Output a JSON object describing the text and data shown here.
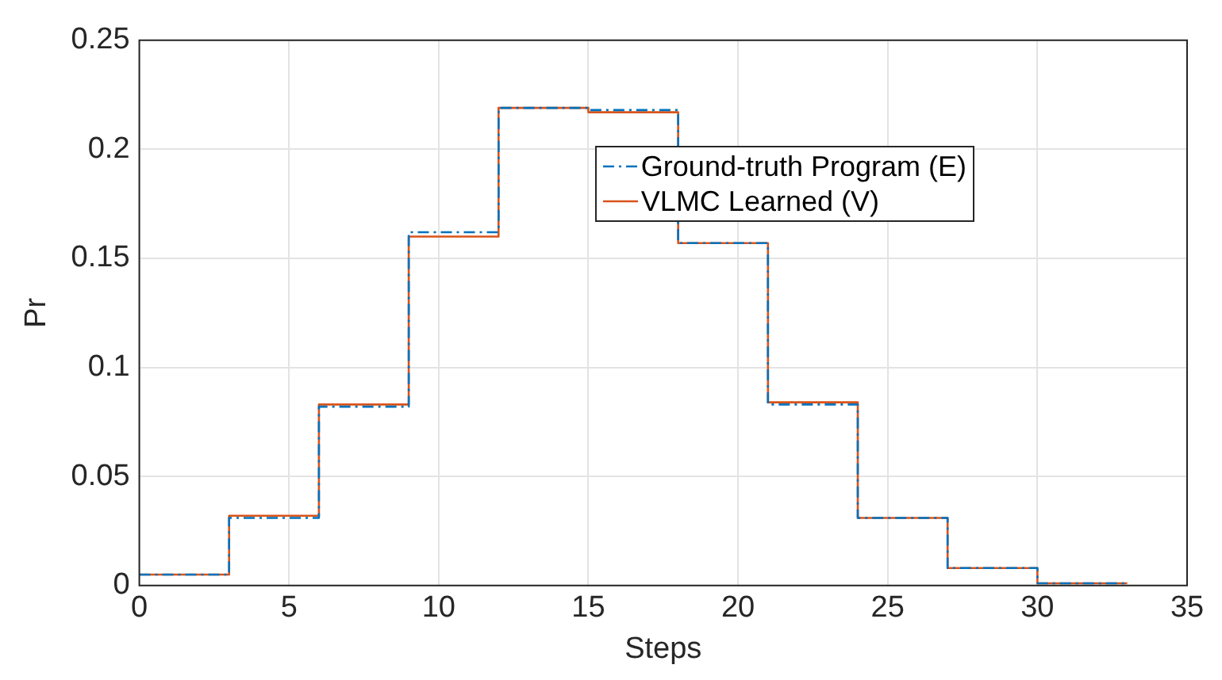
{
  "chart_data": {
    "type": "step",
    "xlabel": "Steps",
    "ylabel": "Pr",
    "x": [
      0,
      3,
      6,
      9,
      12,
      15,
      18,
      21,
      24,
      27,
      30,
      33
    ],
    "series": [
      {
        "name": "Ground-truth Program (E)",
        "color": "#0072bd",
        "line_style": "dashed",
        "values": [
          0.005,
          0.031,
          0.082,
          0.162,
          0.219,
          0.218,
          0.157,
          0.083,
          0.031,
          0.008,
          0.001,
          0.001
        ]
      },
      {
        "name": "VLMC Learned (V)",
        "color": "#d95319",
        "line_style": "solid",
        "values": [
          0.005,
          0.032,
          0.083,
          0.16,
          0.219,
          0.217,
          0.157,
          0.084,
          0.031,
          0.008,
          0.001,
          0.001
        ]
      }
    ],
    "xlim": [
      0,
      35
    ],
    "xticks": [
      0,
      5,
      10,
      15,
      20,
      25,
      30,
      35
    ],
    "ylim": [
      0,
      0.25
    ],
    "yticks": [
      0,
      0.05,
      0.1,
      0.15,
      0.2,
      0.25
    ],
    "grid": true,
    "legend": "top right",
    "marker": "none"
  }
}
